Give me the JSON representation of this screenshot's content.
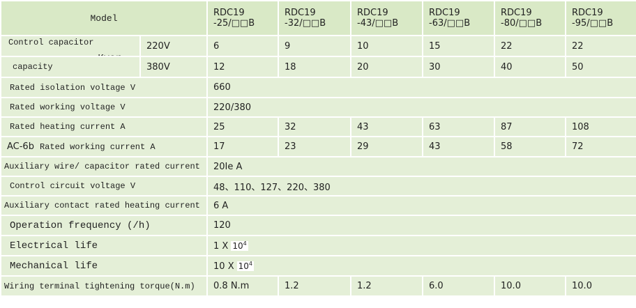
{
  "header": {
    "model": "Model",
    "columns": [
      [
        "RDC19",
        "-25/□□B"
      ],
      [
        "RDC19",
        "-32/□□B"
      ],
      [
        "RDC19",
        "-43/□□B"
      ],
      [
        "RDC19",
        "-63/□□B"
      ],
      [
        "RDC19",
        "-80/□□B"
      ],
      [
        "RDC19",
        "-95/□□B"
      ]
    ]
  },
  "capacitor": {
    "label": [
      "Control capacitor",
      "capacity"
    ],
    "unit": "Kvar",
    "rows": [
      {
        "voltage": "220V",
        "values": [
          "6",
          "9",
          "10",
          "15",
          "22",
          "22"
        ]
      },
      {
        "voltage": "380V",
        "values": [
          "12",
          "18",
          "20",
          "30",
          "40",
          "50"
        ]
      }
    ]
  },
  "rows": [
    {
      "label": "Rated isolation voltage V",
      "value": "660"
    },
    {
      "label": "Rated working voltage V",
      "value": "220/380"
    },
    {
      "label": "Rated heating current A",
      "values": [
        "25",
        "32",
        "43",
        "63",
        "87",
        "108"
      ]
    },
    {
      "prefix": "AC-6b",
      "label": "Rated working current A",
      "values": [
        "17",
        "23",
        "29",
        "43",
        "58",
        "72"
      ]
    },
    {
      "label": "Auxiliary wire/ capacitor rated current",
      "value": "20Ie  A"
    },
    {
      "label": "Control circuit voltage V",
      "value": "48、110、127、220、380"
    },
    {
      "label": "Auxiliary contact rated heating current",
      "value": "6 A"
    },
    {
      "label": "Operation frequency (/h)",
      "value": "120"
    },
    {
      "label": "Electrical life",
      "value": "1 X",
      "base": "10",
      "exp": "4"
    },
    {
      "label": "Mechanical life",
      "value": "10 X",
      "base": "10",
      "exp": "4"
    },
    {
      "label": "Wiring terminal tightening torque(N.m)",
      "values": [
        "0.8 N.m",
        "1.2",
        "1.2",
        "6.0",
        "10.0",
        "10.0"
      ]
    }
  ]
}
